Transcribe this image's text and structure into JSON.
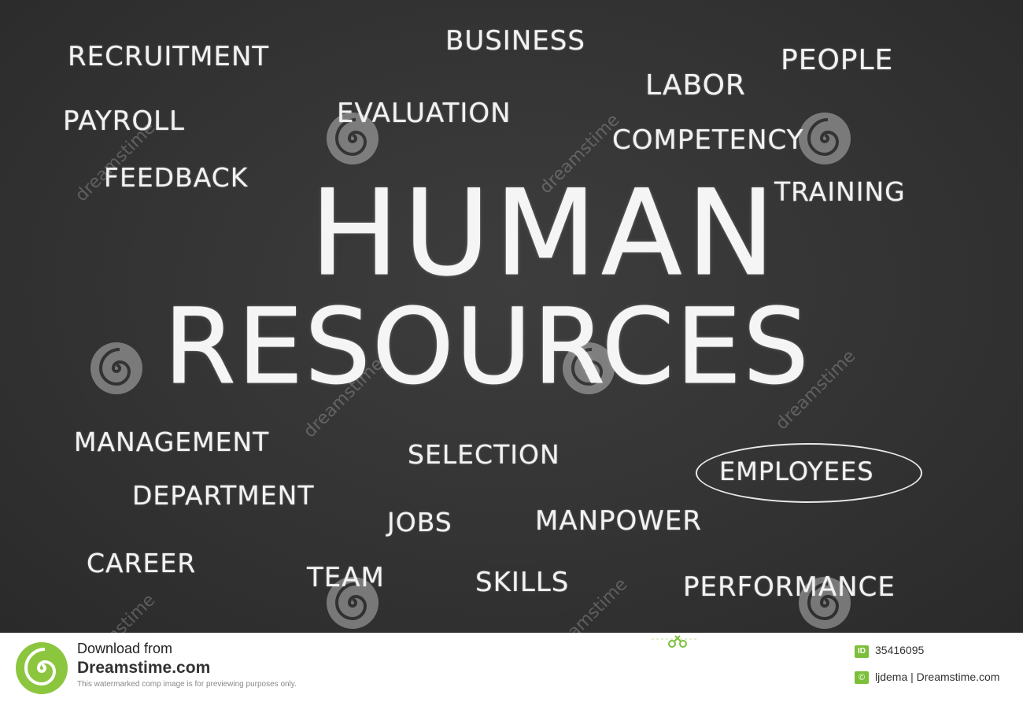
{
  "board": {
    "title_line1": "HUMAN",
    "title_line2": "RESOURCES",
    "words": {
      "recruitment": "RECRUITMENT",
      "business": "BUSINESS",
      "people": "PEOPLE",
      "labor": "LABOR",
      "payroll": "PAYROLL",
      "evaluation": "EVALUATION",
      "competency": "COMPETENCY",
      "feedback": "FEEDBACK",
      "training": "TRAINING",
      "management": "MANAGEMENT",
      "selection": "SELECTION",
      "employees": "EMPLOYEES",
      "department": "DEPARTMENT",
      "jobs": "JOBS",
      "manpower": "MANPOWER",
      "career": "CAREER",
      "team": "TEAM",
      "skills": "SKILLS",
      "performance": "PERFORMANCE"
    },
    "watermark": "dreamstime"
  },
  "footer": {
    "download_label": "Download from",
    "site_name": "Dreamstime.com",
    "note": "This watermarked comp image is for previewing purposes only.",
    "id_badge": "ID",
    "image_id": "35416095",
    "copyright_badge": "©",
    "credit": "ljdema | Dreamstime.com"
  },
  "colors": {
    "chalkboard": "#333333",
    "chalk": "#f2f2f2",
    "brand_green": "#7cbf3a"
  },
  "icons": [
    "dreamstime-spiral-logo",
    "scissors-icon"
  ]
}
